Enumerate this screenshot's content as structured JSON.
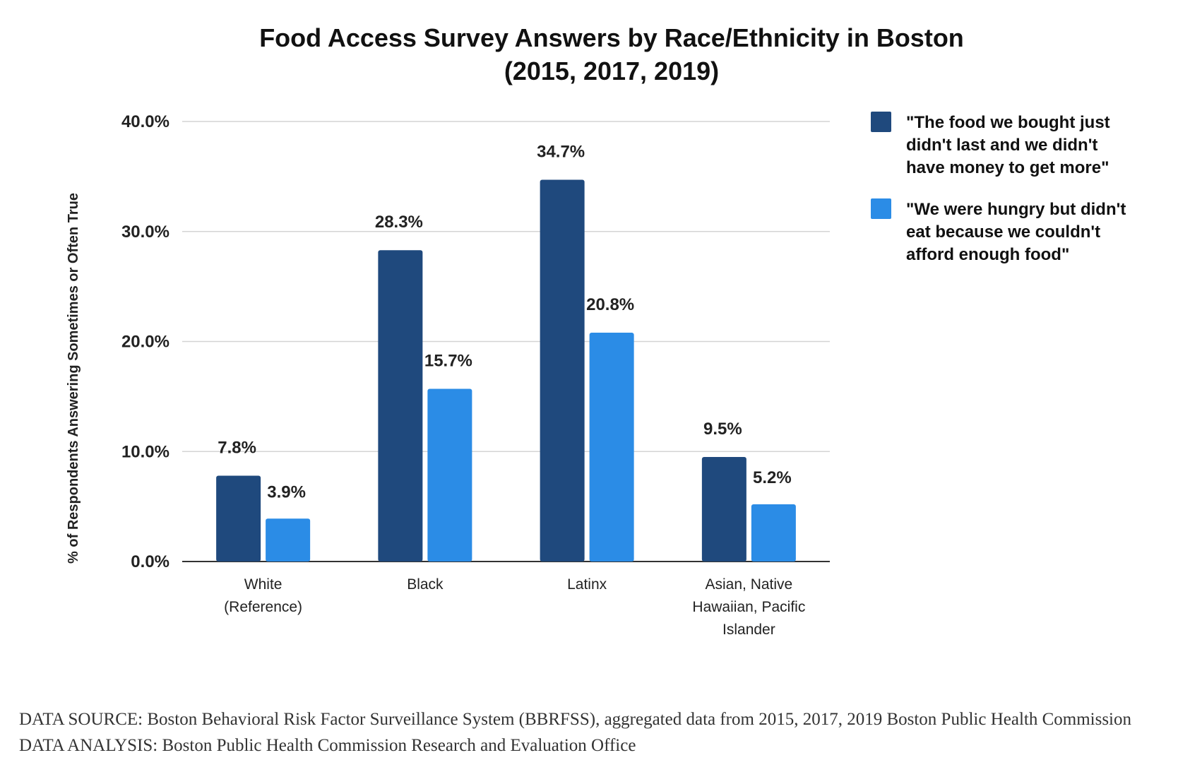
{
  "chart_data": {
    "type": "bar",
    "title_lines": [
      "Food Access Survey Answers by Race/Ethnicity in Boston",
      "(2015, 2017, 2019)"
    ],
    "ylabel": "% of Respondents Answering Sometimes or Often True",
    "xlabel": "",
    "ylim": [
      0,
      40
    ],
    "yticks": [
      0,
      10,
      20,
      30,
      40
    ],
    "ytick_labels": [
      "0.0%",
      "10.0%",
      "20.0%",
      "30.0%",
      "40.0%"
    ],
    "grid": true,
    "legend_position": "right",
    "categories": [
      [
        "White",
        "(Reference)"
      ],
      [
        "Black"
      ],
      [
        "Latinx"
      ],
      [
        "Asian, Native",
        "Hawaiian, Pacific",
        "Islander"
      ]
    ],
    "series": [
      {
        "name_lines": [
          "\"The food we bought just",
          "didn't last and we didn't",
          "have money to get more\""
        ],
        "color": "#1f497d",
        "values": [
          7.8,
          28.3,
          34.7,
          9.5
        ],
        "labels": [
          "7.8%",
          "28.3%",
          "34.7%",
          "9.5%"
        ]
      },
      {
        "name_lines": [
          "\"We were hungry but didn't",
          "eat because we couldn't",
          "afford enough food\""
        ],
        "color": "#2b8ce6",
        "values": [
          3.9,
          15.7,
          20.8,
          5.2
        ],
        "labels": [
          "3.9%",
          "15.7%",
          "20.8%",
          "5.2%"
        ]
      }
    ]
  },
  "footer": {
    "source": "DATA SOURCE: Boston Behavioral Risk Factor Surveillance System (BBRFSS), aggregated data from 2015, 2017, 2019 Boston Public Health Commission",
    "analysis": "DATA ANALYSIS: Boston Public Health Commission Research and Evaluation Office"
  }
}
